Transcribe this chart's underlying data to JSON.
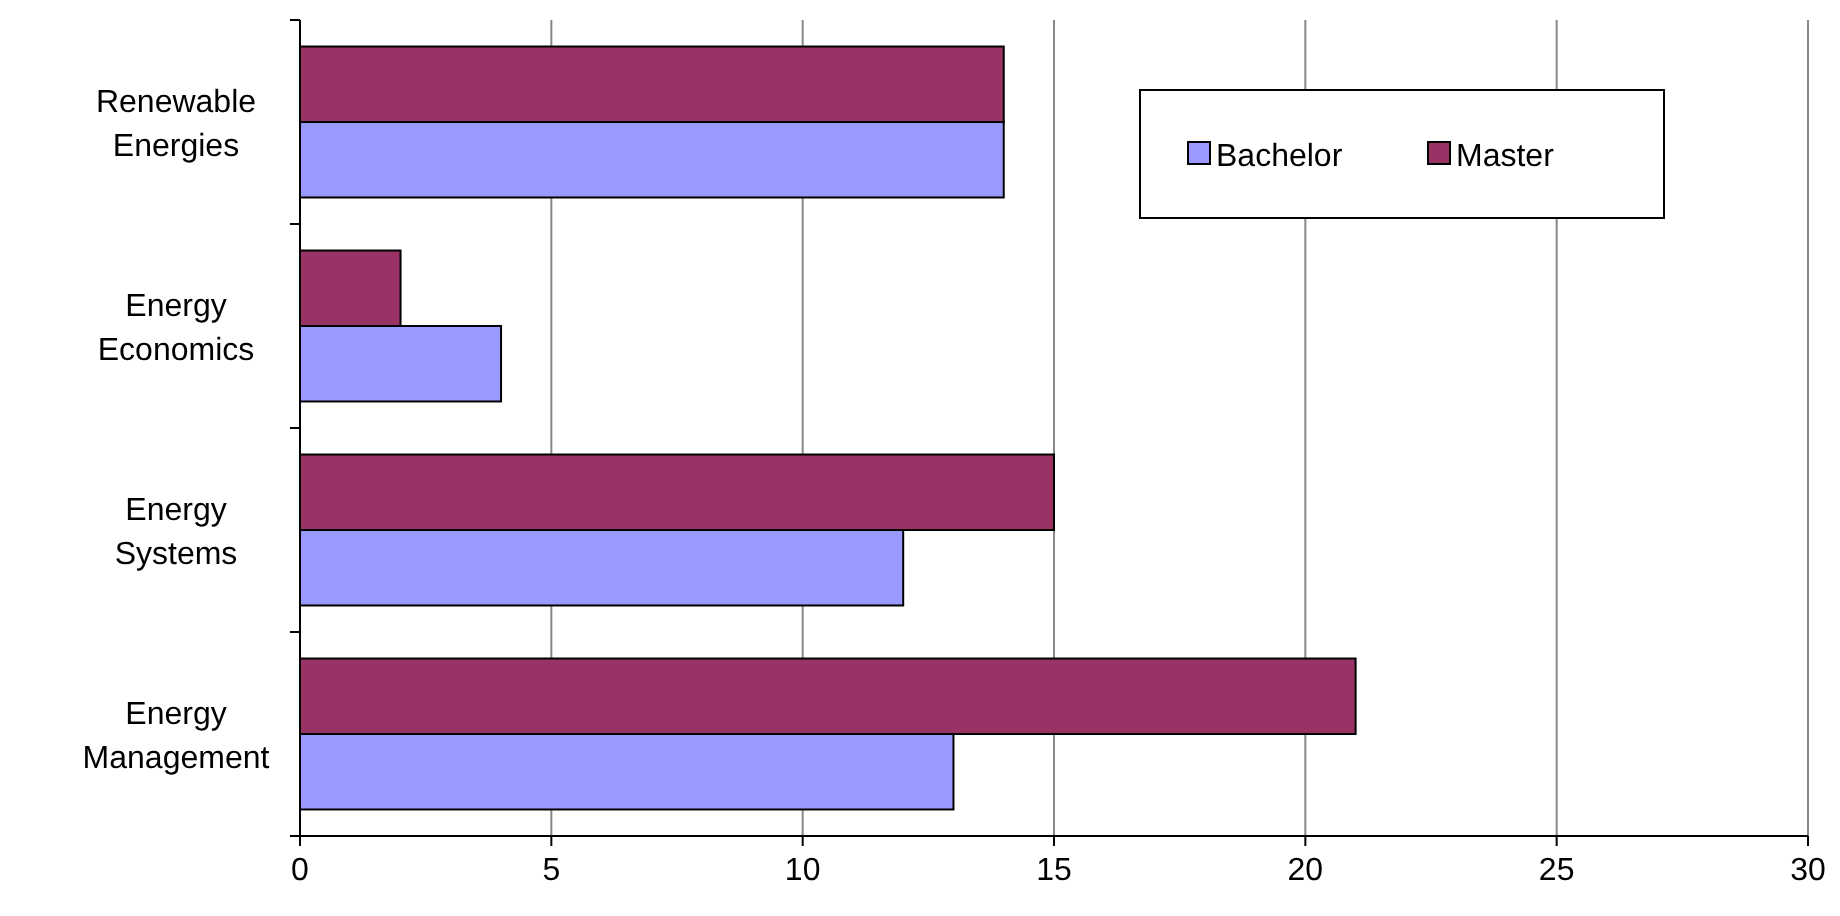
{
  "chart_data": {
    "type": "bar",
    "orientation": "horizontal",
    "categories": [
      "Renewable Energies",
      "Energy Economics",
      "Energy Systems",
      "Energy Management"
    ],
    "series": [
      {
        "name": "Bachelor",
        "color": "#9999ff",
        "values": [
          14,
          4,
          12,
          13
        ]
      },
      {
        "name": "Master",
        "color": "#993366",
        "values": [
          14,
          2,
          15,
          21
        ]
      }
    ],
    "xlim": [
      0,
      30
    ],
    "xticks": [
      0,
      5,
      10,
      15,
      20,
      25,
      30
    ],
    "grid": "x",
    "legend": "top right"
  }
}
